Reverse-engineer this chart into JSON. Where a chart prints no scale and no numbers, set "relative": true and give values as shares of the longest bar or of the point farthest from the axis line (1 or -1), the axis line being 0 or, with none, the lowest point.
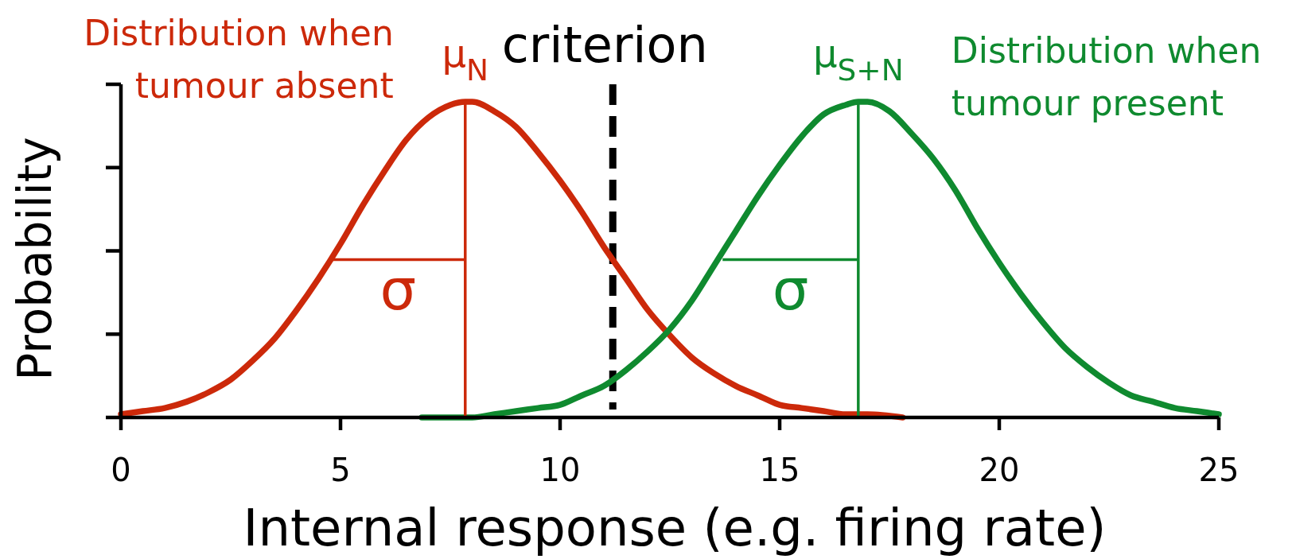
{
  "chart_data": {
    "type": "line",
    "relative": true,
    "xlabel": "Internal response (e.g. firing rate)",
    "ylabel": "Probability",
    "xlim": [
      0,
      25
    ],
    "xticks": [
      0,
      5,
      10,
      15,
      20,
      25
    ],
    "tick_labels": "x",
    "series": [
      {
        "name": "Distribution when tumour absent",
        "color": "#cc290a",
        "x": [
          0,
          0.5,
          1,
          1.5,
          2,
          2.5,
          3,
          3.5,
          4,
          4.5,
          5,
          5.5,
          6,
          6.5,
          7,
          7.5,
          7.84,
          8,
          8.5,
          9,
          9.5,
          10,
          10.5,
          11,
          11.5,
          12,
          12.5,
          13,
          13.5,
          14,
          14.5,
          15,
          15.5,
          16,
          16.5,
          17,
          17.8
        ],
        "values": [
          0.01,
          0.02,
          0.03,
          0.05,
          0.08,
          0.12,
          0.18,
          0.25,
          0.34,
          0.44,
          0.55,
          0.67,
          0.78,
          0.88,
          0.95,
          0.99,
          1,
          1,
          0.97,
          0.92,
          0.84,
          0.75,
          0.65,
          0.54,
          0.44,
          0.34,
          0.26,
          0.19,
          0.14,
          0.1,
          0.07,
          0.04,
          0.03,
          0.02,
          0.01,
          0.01,
          0
        ]
      },
      {
        "name": "Distribution when tumour present",
        "color": "#0f8a2f",
        "x": [
          6.85,
          8,
          8.5,
          9,
          9.5,
          10,
          10.5,
          11,
          11.5,
          12,
          12.5,
          13,
          13.5,
          14,
          14.5,
          15,
          15.5,
          16,
          16.5,
          16.79,
          17,
          17.5,
          18,
          18.5,
          19,
          19.5,
          20,
          20.5,
          21,
          21.5,
          22,
          22.5,
          23,
          23.5,
          24,
          24.5,
          25
        ],
        "values": [
          0,
          0,
          0.01,
          0.02,
          0.03,
          0.04,
          0.07,
          0.1,
          0.15,
          0.21,
          0.28,
          0.37,
          0.48,
          0.59,
          0.7,
          0.8,
          0.89,
          0.96,
          0.99,
          1,
          1,
          0.97,
          0.9,
          0.82,
          0.72,
          0.6,
          0.49,
          0.39,
          0.3,
          0.22,
          0.16,
          0.11,
          0.07,
          0.05,
          0.03,
          0.02,
          0.01
        ]
      },
      {
        "name": "μ$_{N}$",
        "color": "#cc290a",
        "x": [
          7.84,
          7.84
        ],
        "values": [
          0,
          1
        ]
      },
      {
        "name": "μ$_{S+N}$",
        "color": "#0f8a2f",
        "x": [
          16.79,
          16.79
        ],
        "values": [
          0,
          1
        ]
      },
      {
        "name": "σ",
        "color": "#cc290a",
        "x": [
          4.78,
          7.84
        ],
        "values": [
          0.5,
          0.5
        ]
      },
      {
        "name": "σ",
        "color": "#0f8a2f",
        "x": [
          13.7,
          16.79
        ],
        "values": [
          0.5,
          0.5
        ]
      }
    ],
    "ref_lines": [
      {
        "axis": "x",
        "value": 11.2,
        "label": "criterion",
        "color": "#000000",
        "line_style": "dashed"
      }
    ]
  }
}
